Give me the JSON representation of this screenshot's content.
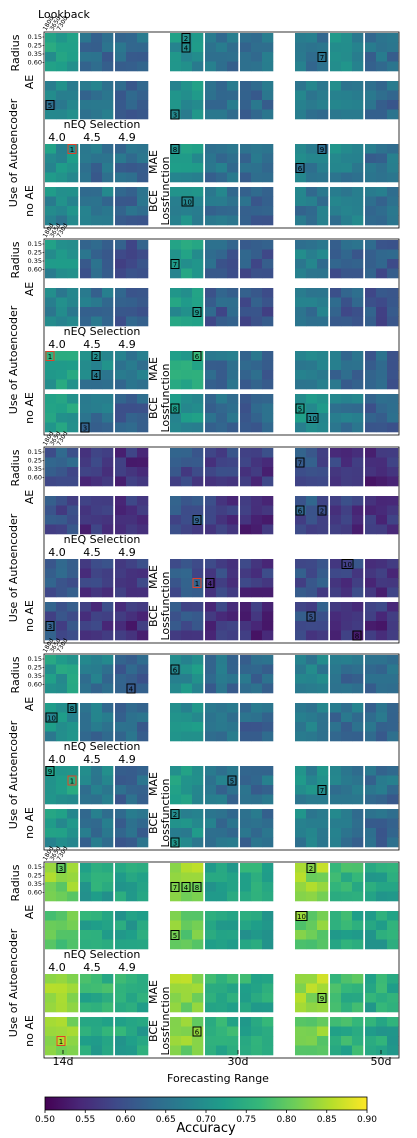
{
  "chart_data": {
    "type": "heatmap",
    "title": "",
    "top_label": "Lookback",
    "lookback_ticks": [
      "180d",
      "365d",
      "730d"
    ],
    "radius_label": "Radius",
    "radius_ticks": [
      "0.15",
      "0.25",
      "0.35",
      "0.60"
    ],
    "row_group_labels": [
      "AE",
      "no AE"
    ],
    "ylabel": "Use of Autoencoder",
    "neq_title": "nEQ Selection",
    "neq_values": [
      "4.0",
      "4.5",
      "4.9"
    ],
    "loss_label": "Lossfunction",
    "loss_values": [
      "MAE",
      "BCE"
    ],
    "xlabel": "Forecasting Range",
    "x_ticks": [
      "14d",
      "30d",
      "50d"
    ],
    "colorbar": {
      "label": "Accuracy",
      "range": [
        0.5,
        0.9
      ],
      "ticks": [
        "0.50",
        "0.55",
        "0.60",
        "0.65",
        "0.70",
        "0.75",
        "0.80",
        "0.85",
        "0.90"
      ],
      "colormap": [
        "#440154",
        "#482878",
        "#3e4a89",
        "#31688e",
        "#26828e",
        "#1f9e89",
        "#35b779",
        "#6ece58",
        "#b5de2b",
        "#fde725"
      ]
    },
    "subplots": [
      {
        "block_means": [
          [
            0.72,
            0.64,
            0.64,
            0.7,
            0.66,
            0.66,
            0.66,
            0.69,
            0.65
          ],
          [
            0.68,
            0.66,
            0.63,
            0.7,
            0.66,
            0.64,
            0.67,
            0.68,
            0.64
          ],
          [
            0.7,
            0.65,
            0.64,
            0.71,
            0.66,
            0.65,
            0.67,
            0.68,
            0.65
          ],
          [
            0.69,
            0.66,
            0.64,
            0.7,
            0.66,
            0.64,
            0.66,
            0.68,
            0.65
          ]
        ],
        "ranks": [
          {
            "label": "1",
            "row": 2,
            "col": 0,
            "sr": 0,
            "sc": 2,
            "top": true
          },
          {
            "label": "2",
            "row": 0,
            "col": 3,
            "sr": 0,
            "sc": 1
          },
          {
            "label": "3",
            "row": 1,
            "col": 3,
            "sr": 3,
            "sc": 0
          },
          {
            "label": "4",
            "row": 0,
            "col": 3,
            "sr": 1,
            "sc": 1
          },
          {
            "label": "5",
            "row": 1,
            "col": 0,
            "sr": 2,
            "sc": 0
          },
          {
            "label": "6",
            "row": 2,
            "col": 6,
            "sr": 2,
            "sc": 0
          },
          {
            "label": "7",
            "row": 0,
            "col": 6,
            "sr": 2,
            "sc": 2
          },
          {
            "label": "8",
            "row": 2,
            "col": 3,
            "sr": 0,
            "sc": 0
          },
          {
            "label": "9",
            "row": 2,
            "col": 6,
            "sr": 0,
            "sc": 2
          },
          {
            "label": "10",
            "row": 3,
            "col": 3,
            "sr": 1,
            "sc": 1
          }
        ]
      },
      {
        "block_means": [
          [
            0.7,
            0.64,
            0.6,
            0.72,
            0.63,
            0.62,
            0.67,
            0.63,
            0.62
          ],
          [
            0.68,
            0.65,
            0.62,
            0.72,
            0.62,
            0.6,
            0.66,
            0.62,
            0.61
          ],
          [
            0.73,
            0.68,
            0.66,
            0.74,
            0.65,
            0.64,
            0.68,
            0.65,
            0.63
          ],
          [
            0.73,
            0.66,
            0.63,
            0.71,
            0.64,
            0.63,
            0.71,
            0.66,
            0.63
          ]
        ],
        "ranks": [
          {
            "label": "1",
            "row": 2,
            "col": 0,
            "sr": 0,
            "sc": 0,
            "top": true
          },
          {
            "label": "2",
            "row": 2,
            "col": 1,
            "sr": 0,
            "sc": 1
          },
          {
            "label": "3",
            "row": 3,
            "col": 1,
            "sr": 3,
            "sc": 0
          },
          {
            "label": "4",
            "row": 2,
            "col": 1,
            "sr": 2,
            "sc": 1
          },
          {
            "label": "5",
            "row": 3,
            "col": 6,
            "sr": 1,
            "sc": 0
          },
          {
            "label": "6",
            "row": 2,
            "col": 3,
            "sr": 0,
            "sc": 2
          },
          {
            "label": "7",
            "row": 0,
            "col": 3,
            "sr": 2,
            "sc": 0
          },
          {
            "label": "8",
            "row": 3,
            "col": 3,
            "sr": 1,
            "sc": 0
          },
          {
            "label": "9",
            "row": 1,
            "col": 3,
            "sr": 2,
            "sc": 2
          },
          {
            "label": "10",
            "row": 3,
            "col": 6,
            "sr": 2,
            "sc": 1
          }
        ]
      },
      {
        "block_means": [
          [
            0.62,
            0.58,
            0.56,
            0.6,
            0.58,
            0.57,
            0.6,
            0.57,
            0.56
          ],
          [
            0.6,
            0.57,
            0.56,
            0.61,
            0.57,
            0.56,
            0.61,
            0.57,
            0.56
          ],
          [
            0.62,
            0.58,
            0.57,
            0.61,
            0.58,
            0.57,
            0.61,
            0.58,
            0.57
          ],
          [
            0.61,
            0.57,
            0.56,
            0.6,
            0.57,
            0.56,
            0.6,
            0.57,
            0.56
          ]
        ],
        "ranks": [
          {
            "label": "1",
            "row": 2,
            "col": 3,
            "sr": 2,
            "sc": 2,
            "top": true
          },
          {
            "label": "2",
            "row": 1,
            "col": 6,
            "sr": 1,
            "sc": 2
          },
          {
            "label": "3",
            "row": 3,
            "col": 0,
            "sr": 2,
            "sc": 0
          },
          {
            "label": "4",
            "row": 2,
            "col": 4,
            "sr": 2,
            "sc": 0
          },
          {
            "label": "5",
            "row": 3,
            "col": 6,
            "sr": 1,
            "sc": 1
          },
          {
            "label": "6",
            "row": 1,
            "col": 6,
            "sr": 1,
            "sc": 0
          },
          {
            "label": "7",
            "row": 0,
            "col": 6,
            "sr": 1,
            "sc": 0
          },
          {
            "label": "8",
            "row": 3,
            "col": 7,
            "sr": 3,
            "sc": 2
          },
          {
            "label": "9",
            "row": 1,
            "col": 3,
            "sr": 2,
            "sc": 2
          },
          {
            "label": "10",
            "row": 2,
            "col": 7,
            "sr": 0,
            "sc": 1
          }
        ]
      },
      {
        "block_means": [
          [
            0.72,
            0.66,
            0.63,
            0.7,
            0.65,
            0.64,
            0.68,
            0.65,
            0.64
          ],
          [
            0.7,
            0.66,
            0.64,
            0.7,
            0.66,
            0.64,
            0.67,
            0.65,
            0.64
          ],
          [
            0.73,
            0.67,
            0.64,
            0.72,
            0.66,
            0.65,
            0.69,
            0.66,
            0.65
          ],
          [
            0.71,
            0.66,
            0.64,
            0.7,
            0.66,
            0.64,
            0.68,
            0.66,
            0.64
          ]
        ],
        "ranks": [
          {
            "label": "1",
            "row": 2,
            "col": 0,
            "sr": 1,
            "sc": 2,
            "top": true
          },
          {
            "label": "2",
            "row": 3,
            "col": 3,
            "sr": 0,
            "sc": 0
          },
          {
            "label": "3",
            "row": 3,
            "col": 3,
            "sr": 3,
            "sc": 0
          },
          {
            "label": "4",
            "row": 0,
            "col": 2,
            "sr": 3,
            "sc": 1
          },
          {
            "label": "5",
            "row": 2,
            "col": 4,
            "sr": 1,
            "sc": 2
          },
          {
            "label": "6",
            "row": 0,
            "col": 3,
            "sr": 1,
            "sc": 0
          },
          {
            "label": "7",
            "row": 2,
            "col": 6,
            "sr": 2,
            "sc": 2
          },
          {
            "label": "8",
            "row": 1,
            "col": 0,
            "sr": 0,
            "sc": 2
          },
          {
            "label": "9",
            "row": 2,
            "col": 0,
            "sr": 0,
            "sc": 0
          },
          {
            "label": "10",
            "row": 1,
            "col": 0,
            "sr": 1,
            "sc": 0
          }
        ]
      },
      {
        "block_means": [
          [
            0.83,
            0.74,
            0.74,
            0.84,
            0.74,
            0.74,
            0.84,
            0.76,
            0.74
          ],
          [
            0.8,
            0.74,
            0.73,
            0.82,
            0.74,
            0.73,
            0.81,
            0.75,
            0.74
          ],
          [
            0.85,
            0.76,
            0.75,
            0.84,
            0.76,
            0.75,
            0.85,
            0.77,
            0.75
          ],
          [
            0.83,
            0.75,
            0.74,
            0.83,
            0.75,
            0.74,
            0.82,
            0.76,
            0.74
          ]
        ],
        "ranks": [
          {
            "label": "1",
            "row": 3,
            "col": 0,
            "sr": 2,
            "sc": 1,
            "top": true
          },
          {
            "label": "2",
            "row": 0,
            "col": 6,
            "sr": 0,
            "sc": 1
          },
          {
            "label": "3",
            "row": 0,
            "col": 0,
            "sr": 0,
            "sc": 1
          },
          {
            "label": "4",
            "row": 0,
            "col": 3,
            "sr": 2,
            "sc": 1
          },
          {
            "label": "5",
            "row": 1,
            "col": 3,
            "sr": 2,
            "sc": 0
          },
          {
            "label": "6",
            "row": 3,
            "col": 3,
            "sr": 1,
            "sc": 2
          },
          {
            "label": "7",
            "row": 0,
            "col": 3,
            "sr": 2,
            "sc": 0
          },
          {
            "label": "8",
            "row": 0,
            "col": 3,
            "sr": 2,
            "sc": 2
          },
          {
            "label": "9",
            "row": 2,
            "col": 6,
            "sr": 2,
            "sc": 2
          },
          {
            "label": "10",
            "row": 1,
            "col": 6,
            "sr": 0,
            "sc": 0
          }
        ]
      }
    ]
  }
}
